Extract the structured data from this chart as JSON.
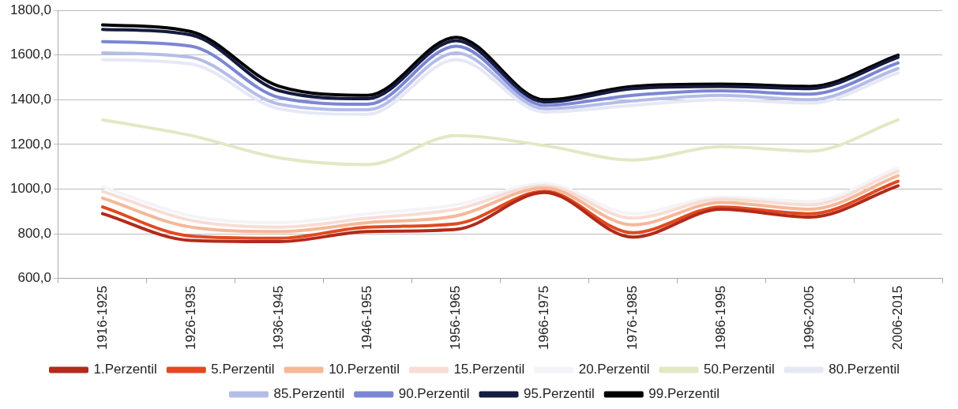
{
  "chart_data": {
    "type": "line",
    "categories": [
      "1916-1925",
      "1926-1935",
      "1936-1945",
      "1946-1955",
      "1956-1965",
      "1966-1975",
      "1976-1985",
      "1986-1995",
      "1996-2005",
      "2006-2015"
    ],
    "series": [
      {
        "name": "1.Perzentil",
        "color": "#b22a1a",
        "values": [
          890,
          770,
          765,
          810,
          820,
          985,
          785,
          910,
          875,
          1015
        ]
      },
      {
        "name": "5.Perzentil",
        "color": "#e04a20",
        "values": [
          920,
          790,
          780,
          830,
          845,
          990,
          805,
          920,
          890,
          1035
        ]
      },
      {
        "name": "10.Perzentil",
        "color": "#f5b898",
        "values": [
          960,
          830,
          810,
          850,
          880,
          1005,
          840,
          940,
          910,
          1060
        ]
      },
      {
        "name": "15.Perzentil",
        "color": "#f8ddd5",
        "values": [
          990,
          860,
          830,
          870,
          910,
          1015,
          870,
          955,
          930,
          1080
        ]
      },
      {
        "name": "20.Perzentil",
        "color": "#f4f4f8",
        "values": [
          1010,
          880,
          850,
          890,
          930,
          1025,
          890,
          965,
          945,
          1095
        ]
      },
      {
        "name": "50.Perzentil",
        "color": "#e2e8c4",
        "values": [
          1310,
          1240,
          1140,
          1110,
          1240,
          1195,
          1130,
          1190,
          1170,
          1310
        ]
      },
      {
        "name": "80.Perzentil",
        "color": "#e6e8f6",
        "values": [
          1580,
          1560,
          1360,
          1335,
          1580,
          1345,
          1375,
          1400,
          1385,
          1520
        ]
      },
      {
        "name": "85.Perzentil",
        "color": "#b4bde8",
        "values": [
          1610,
          1590,
          1380,
          1355,
          1610,
          1360,
          1395,
          1420,
          1400,
          1540
        ]
      },
      {
        "name": "90.Perzentil",
        "color": "#7b86d4",
        "values": [
          1660,
          1640,
          1410,
          1380,
          1640,
          1375,
          1420,
          1440,
          1425,
          1565
        ]
      },
      {
        "name": "95.Perzentil",
        "color": "#161a40",
        "values": [
          1715,
          1690,
          1440,
          1405,
          1665,
          1390,
          1450,
          1460,
          1450,
          1590
        ]
      },
      {
        "name": "99.Perzentil",
        "color": "#000000",
        "values": [
          1735,
          1705,
          1460,
          1420,
          1680,
          1400,
          1460,
          1470,
          1460,
          1600
        ]
      }
    ],
    "ylim": [
      600,
      1800
    ],
    "yticks": [
      {
        "value": 600,
        "label": "600,0"
      },
      {
        "value": 800,
        "label": "800,0"
      },
      {
        "value": 1000,
        "label": "1000,0"
      },
      {
        "value": 1200,
        "label": "1200,0"
      },
      {
        "value": 1400,
        "label": "1400,0"
      },
      {
        "value": 1600,
        "label": "1600,0"
      },
      {
        "value": 1800,
        "label": "1800,0"
      }
    ],
    "grid": "y",
    "legend": "bottom",
    "marker": "none",
    "line_style": "solid"
  }
}
